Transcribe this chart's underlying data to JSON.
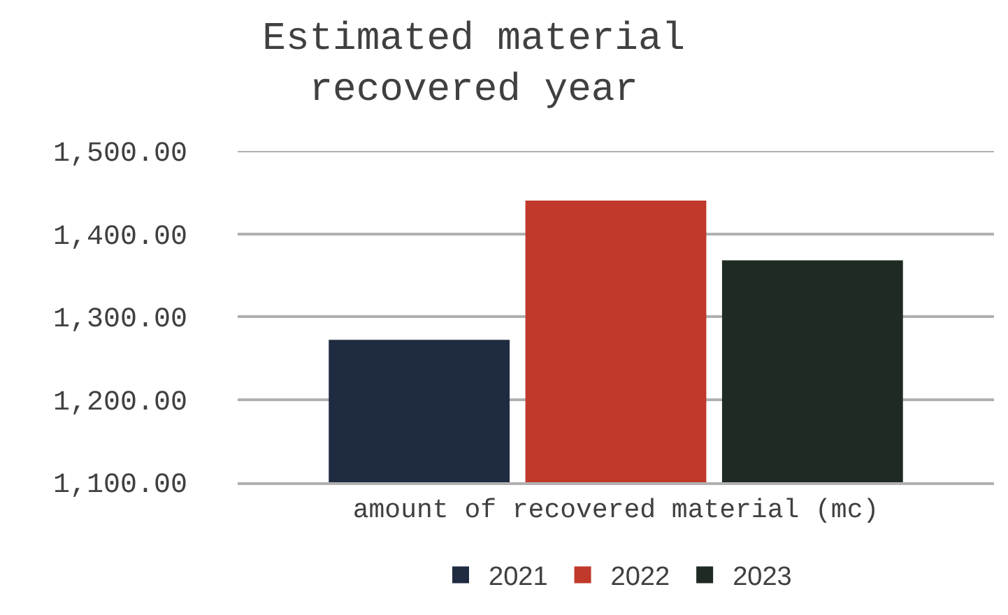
{
  "chart_data": {
    "type": "bar",
    "title": "Estimated material recovered year",
    "categories": [
      "amount of recovered material (mc)"
    ],
    "series": [
      {
        "name": "2021",
        "color": "#1f2b40",
        "values": [
          1272
        ]
      },
      {
        "name": "2022",
        "color": "#c0392a",
        "values": [
          1440
        ]
      },
      {
        "name": "2023",
        "color": "#1f2b22",
        "values": [
          1368
        ]
      }
    ],
    "ylim": [
      1100,
      1500
    ],
    "yticks": [
      {
        "value": 1100,
        "label": "1,100.00"
      },
      {
        "value": 1200,
        "label": "1,200.00"
      },
      {
        "value": 1300,
        "label": "1,300.00"
      },
      {
        "value": 1400,
        "label": "1,400.00"
      },
      {
        "value": 1500,
        "label": "1,500.00"
      }
    ],
    "grid": "y",
    "legend": "bottom"
  }
}
